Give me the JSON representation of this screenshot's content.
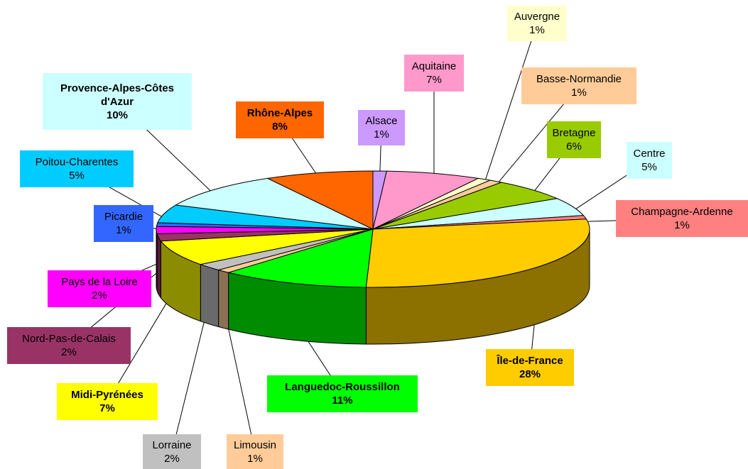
{
  "chart_data": {
    "type": "pie",
    "categories": [
      "Alsace",
      "Aquitaine",
      "Auvergne",
      "Basse-Normandie",
      "Bretagne",
      "Centre",
      "Champagne-Ardenne",
      "Île-de-France",
      "Languedoc-Roussillon",
      "Limousin",
      "Lorraine",
      "Midi-Pyrénées",
      "Nord-Pas-de-Calais",
      "Pays de la Loire",
      "Picardie",
      "Poitou-Charentes",
      "Provence-Alpes-Côtes d'Azur",
      "Rhône-Alpes"
    ],
    "values": [
      1,
      7,
      1,
      1,
      6,
      5,
      1,
      28,
      11,
      1,
      2,
      7,
      2,
      2,
      1,
      5,
      10,
      8
    ],
    "value_labels": [
      "1%",
      "7%",
      "1%",
      "1%",
      "6%",
      "5%",
      "1%",
      "28%",
      "11%",
      "1%",
      "2%",
      "7%",
      "2%",
      "2%",
      "1%",
      "5%",
      "10%",
      "8%"
    ],
    "colors": [
      "#cc99ff",
      "#ff99cc",
      "#ffffcc",
      "#ffcc99",
      "#99cc00",
      "#ccffff",
      "#ff8080",
      "#ffcc00",
      "#00ff00",
      "#ffcc99",
      "#c0c0c0",
      "#ffff00",
      "#993366",
      "#ff00ff",
      "#3366ff",
      "#00ccff",
      "#ccffff",
      "#ff6600"
    ]
  }
}
